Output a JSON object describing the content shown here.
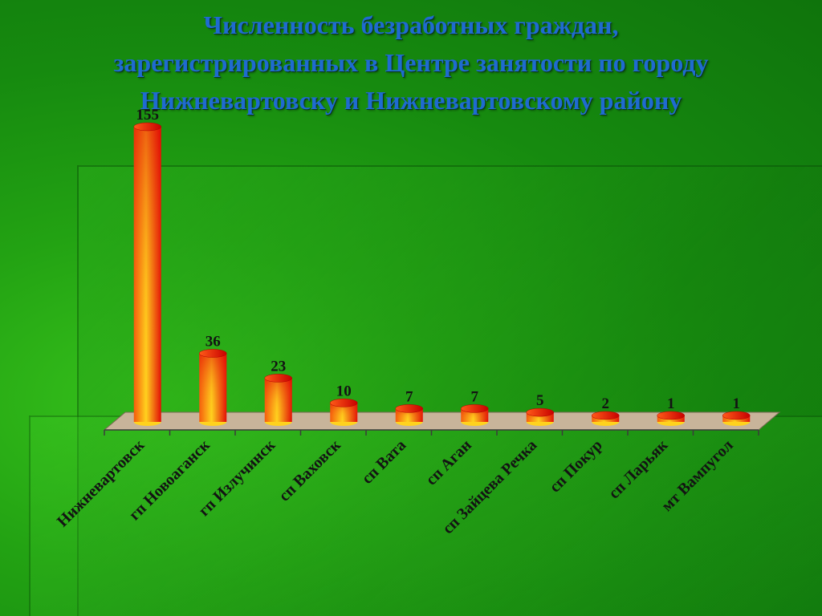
{
  "colors": {
    "bar_dark": "#e20a06",
    "bar_mid": "#f55a0c",
    "bar_light": "#ffd21e",
    "floor": "#c8b49a",
    "label": "#131313"
  },
  "chart_data": {
    "type": "bar",
    "title": "Численность безработных граждан, зарегистрированных в Центре занятости по городу Нижневартовску и Нижневартовскому району",
    "title_lines": [
      "Численность безработных граждан,",
      "зарегистрированных в Центре занятости по городу",
      "Нижневартовску и Нижневартовскому району"
    ],
    "categories": [
      "Нижневартовск",
      "гп Новоаганск",
      "гп Излучинск",
      "сп Ваховск",
      "сп Вата",
      "сп Аган",
      "сп Зайцева Речка",
      "сп Покур",
      "сп Ларьяк",
      "мт Вампугол"
    ],
    "values": [
      155,
      36,
      23,
      10,
      7,
      7,
      5,
      2,
      1,
      1
    ],
    "data_labels": [
      "155",
      "36",
      "23",
      "10",
      "7",
      "7",
      "5",
      "2",
      "1",
      "1"
    ],
    "style": "3d-cylinder",
    "grid": false,
    "legend": "none"
  }
}
